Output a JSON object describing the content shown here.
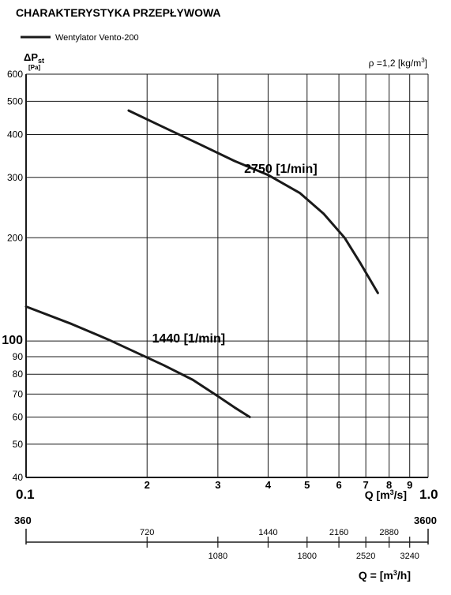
{
  "title": "CHARAKTERYSTYKA PRZEPŁYWOWA",
  "legend_label": "Wentylator Vento-200",
  "density_note_prefix": "ρ =1,2 [kg/m",
  "density_note_sup": "3",
  "density_note_suffix": "]",
  "ylabel_main": "ΔP",
  "ylabel_sub": "st",
  "ylabel_unit": "[Pa]",
  "xlabel_prefix": "Q [m",
  "xlabel_sup": "3",
  "xlabel_suffix": "/s]",
  "x_min_label": "0.1",
  "x_max_label": "1.0",
  "hour_axis": {
    "min_label": "360",
    "max_label": "3600",
    "ticks": [
      {
        "q": 0.2,
        "label": "720",
        "row": "top"
      },
      {
        "q": 0.3,
        "label": "1080",
        "row": "bottom"
      },
      {
        "q": 0.4,
        "label": "1440",
        "row": "top"
      },
      {
        "q": 0.5,
        "label": "1800",
        "row": "bottom"
      },
      {
        "q": 0.6,
        "label": "2160",
        "row": "top"
      },
      {
        "q": 0.7,
        "label": "2520",
        "row": "bottom"
      },
      {
        "q": 0.8,
        "label": "2880",
        "row": "top"
      },
      {
        "q": 0.9,
        "label": "3240",
        "row": "bottom"
      }
    ],
    "label_prefix": "Q = [m",
    "label_sup": "3",
    "label_suffix": "/h]"
  },
  "chart_data": {
    "type": "line",
    "title": "CHARAKTERYSTYKA PRZEPŁYWOWA",
    "xscale": "log",
    "yscale": "log",
    "xlim": [
      0.1,
      1.0
    ],
    "ylim": [
      40,
      600
    ],
    "x_ticks": [
      0.2,
      0.3,
      0.4,
      0.5,
      0.6,
      0.7,
      0.8,
      0.9
    ],
    "x_tick_labels": [
      "2",
      "3",
      "4",
      "5",
      "6",
      "7",
      "8",
      "9"
    ],
    "y_ticks": [
      40,
      50,
      60,
      70,
      80,
      90,
      100,
      200,
      300,
      400,
      500,
      600
    ],
    "y_tick_labels": [
      "40",
      "50",
      "60",
      "70",
      "80",
      "90",
      "100",
      "200",
      "300",
      "400",
      "500",
      "600"
    ],
    "grid": true,
    "line_color": "#1a1a1a",
    "series": [
      {
        "label": "2750 [1/min]",
        "x": [
          0.18,
          0.22,
          0.27,
          0.33,
          0.4,
          0.48,
          0.55,
          0.62,
          0.68,
          0.75
        ],
        "y": [
          470,
          420,
          375,
          335,
          305,
          270,
          235,
          200,
          168,
          138
        ]
      },
      {
        "label": "1440 [1/min]",
        "x": [
          0.1,
          0.13,
          0.16,
          0.19,
          0.22,
          0.26,
          0.3,
          0.33,
          0.36
        ],
        "y": [
          126,
          112,
          101,
          92,
          85,
          77,
          69,
          64,
          60
        ]
      }
    ]
  }
}
